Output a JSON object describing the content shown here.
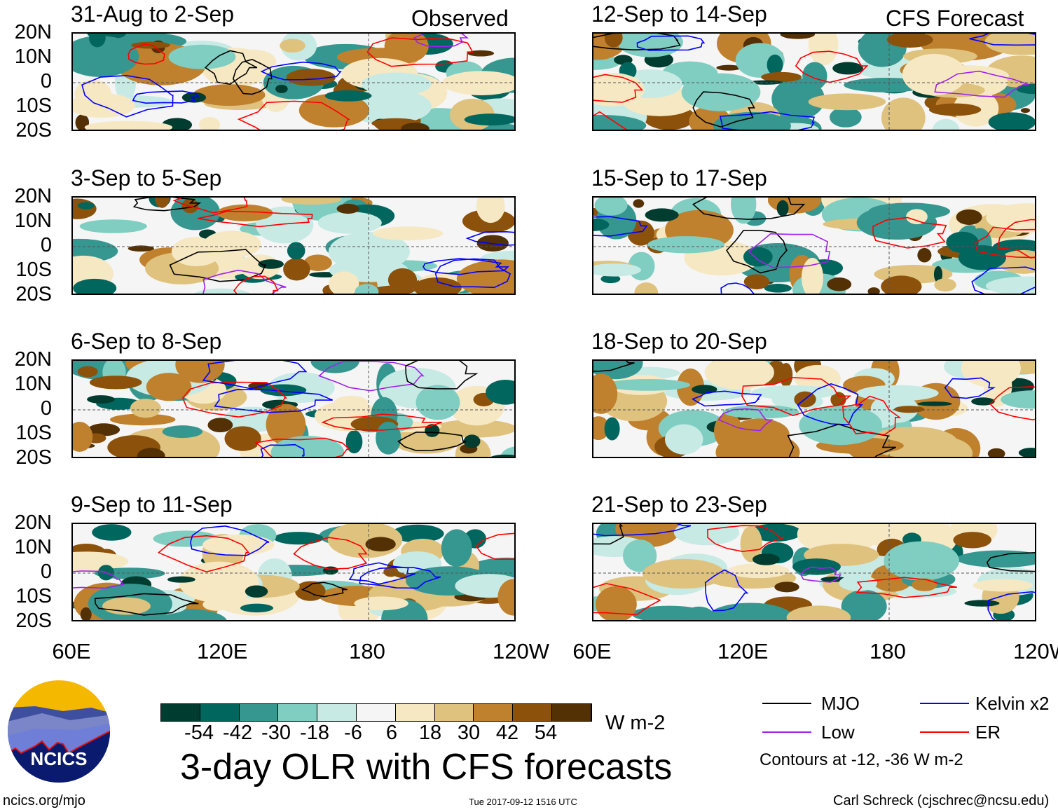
{
  "observed_label": "Observed",
  "forecast_label": "CFS Forecast",
  "panels": [
    {
      "title": "31-Aug to 2-Sep",
      "column": "observed"
    },
    {
      "title": "3-Sep to 5-Sep",
      "column": "observed"
    },
    {
      "title": "6-Sep to 8-Sep",
      "column": "observed"
    },
    {
      "title": "9-Sep to 11-Sep",
      "column": "observed"
    },
    {
      "title": "12-Sep to 14-Sep",
      "column": "forecast"
    },
    {
      "title": "15-Sep to 17-Sep",
      "column": "forecast"
    },
    {
      "title": "18-Sep to 20-Sep",
      "column": "forecast"
    },
    {
      "title": "21-Sep to 23-Sep",
      "column": "forecast"
    }
  ],
  "lat_labels": [
    "20N",
    "10N",
    "0",
    "10S",
    "20S"
  ],
  "lon_labels": [
    "60E",
    "120E",
    "180",
    "120W"
  ],
  "colorbar": {
    "colors": [
      "#003c30",
      "#01665e",
      "#35978f",
      "#80cdc1",
      "#c7eae5",
      "#f5f5f5",
      "#f6e8c3",
      "#dfc27d",
      "#bf812d",
      "#8c510a",
      "#543005"
    ],
    "ticks": [
      "-54",
      "-42",
      "-30",
      "-18",
      "-6",
      "6",
      "18",
      "30",
      "42",
      "54"
    ],
    "units": "W m-2"
  },
  "title": "3-day OLR with CFS forecasts",
  "legend": {
    "items": [
      {
        "label": "MJO",
        "color": "#000000"
      },
      {
        "label": "Kelvin x2",
        "color": "#0000ff"
      },
      {
        "label": "Low",
        "color": "#a020f0"
      },
      {
        "label": "ER",
        "color": "#ff0000"
      }
    ],
    "note": "Contours at -12, -36 W m-2"
  },
  "logo_text": "NCICS",
  "website": "ncics.org/mjo",
  "timestamp": "Tue 2017-09-12 1516 UTC",
  "author": "Carl Schreck (cjschrec@ncsu.edu)"
}
